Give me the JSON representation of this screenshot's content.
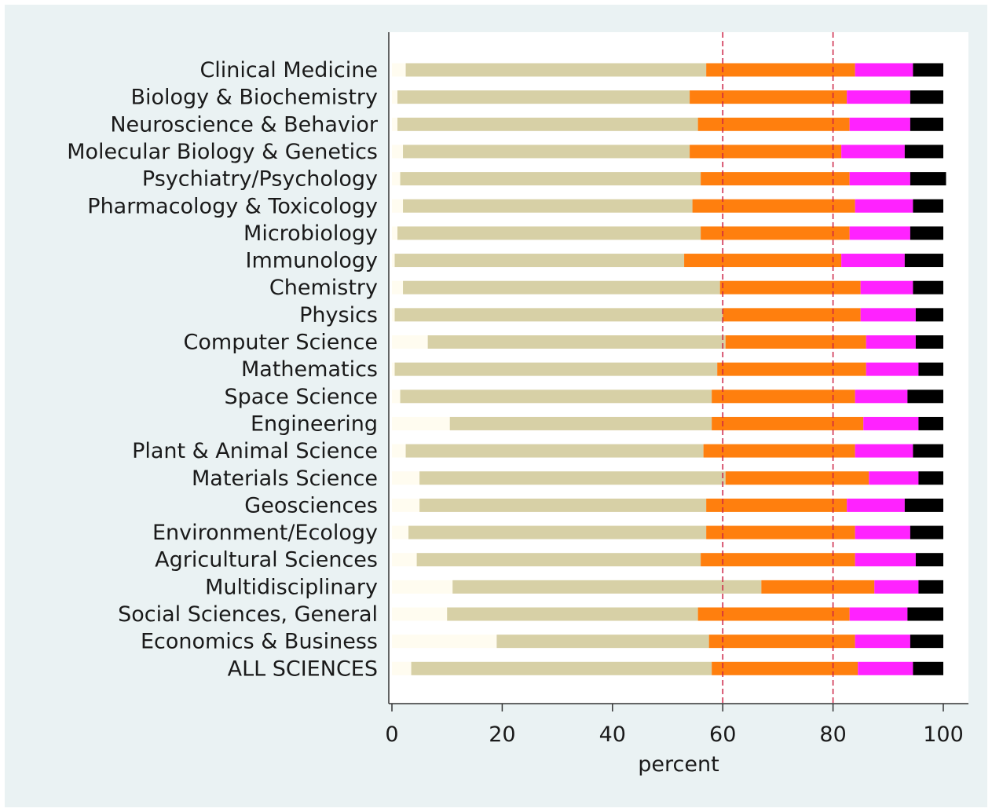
{
  "chart_data": {
    "type": "bar",
    "orientation": "horizontal",
    "stacked": true,
    "xlabel": "percent",
    "ylabel": "",
    "xlim": [
      0,
      100
    ],
    "xticks": [
      "0",
      "20",
      "40",
      "60",
      "80",
      "100"
    ],
    "reference_lines": [
      60,
      80
    ],
    "grid": false,
    "legend": "none",
    "colors": {
      "background": "#eaf2f3",
      "plot_background": "#ffffff",
      "segments": [
        "#fffcf0",
        "#d7d0a6",
        "#ff7f0e",
        "#ff22ff",
        "#000000"
      ],
      "reference_line": "#cc2244"
    },
    "categories": [
      "Clinical Medicine",
      "Biology & Biochemistry",
      "Neuroscience & Behavior",
      "Molecular Biology & Genetics",
      "Psychiatry/Psychology",
      "Pharmacology & Toxicology",
      "Microbiology",
      "Immunology",
      "Chemistry",
      "Physics",
      "Computer Science",
      "Mathematics",
      "Space Science",
      "Engineering",
      "Plant & Animal Science",
      "Materials Science",
      "Geosciences",
      "Environment/Ecology",
      "Agricultural Sciences",
      "Multidisciplinary",
      "Social Sciences, General",
      "Economics & Business",
      "ALL SCIENCES"
    ],
    "series": [
      {
        "values": [
          2.5,
          1.0,
          1.0,
          2.0,
          1.5,
          2.0,
          1.0,
          0.5,
          2.0,
          0.5,
          6.5,
          0.5,
          1.5,
          10.5,
          2.5,
          5.0,
          5.0,
          3.0,
          4.5,
          11.0,
          10.0,
          19.0,
          3.5
        ]
      },
      {
        "values": [
          54.5,
          53.0,
          54.5,
          52.0,
          54.5,
          52.5,
          55.0,
          52.5,
          57.5,
          59.5,
          54.0,
          58.5,
          56.5,
          47.5,
          54.0,
          55.5,
          52.0,
          54.0,
          51.5,
          56.0,
          45.5,
          38.5,
          54.5
        ]
      },
      {
        "values": [
          27.0,
          28.5,
          27.5,
          27.5,
          27.0,
          29.5,
          27.0,
          28.5,
          25.5,
          25.0,
          25.5,
          27.0,
          26.0,
          27.5,
          27.5,
          26.0,
          25.5,
          27.0,
          28.0,
          20.5,
          27.5,
          26.5,
          26.5
        ]
      },
      {
        "values": [
          10.5,
          11.5,
          11.0,
          11.5,
          11.0,
          10.5,
          11.0,
          11.5,
          9.5,
          10.0,
          9.0,
          9.5,
          9.5,
          10.0,
          10.5,
          9.0,
          10.5,
          10.0,
          11.0,
          8.0,
          10.5,
          10.0,
          10.0
        ]
      },
      {
        "values": [
          5.5,
          6.0,
          6.0,
          7.0,
          6.5,
          5.5,
          6.0,
          7.0,
          5.5,
          5.0,
          5.0,
          4.5,
          6.5,
          4.5,
          5.5,
          4.5,
          7.0,
          6.0,
          5.0,
          4.5,
          6.5,
          6.0,
          5.5
        ]
      }
    ]
  }
}
